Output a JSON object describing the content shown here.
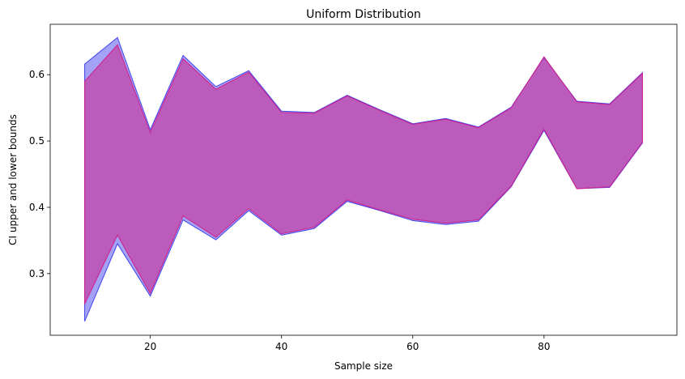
{
  "chart_data": {
    "type": "area",
    "title": "Uniform Distribution",
    "xlabel": "Sample size",
    "ylabel": "CI upper and lower bounds",
    "xlim": [
      4.75,
      100.25
    ],
    "ylim": [
      0.207,
      0.676
    ],
    "xticks": [
      20,
      40,
      60,
      80
    ],
    "yticks": [
      0.3,
      0.4,
      0.5,
      0.6
    ],
    "grid": false,
    "x": [
      10,
      15,
      20,
      25,
      30,
      35,
      40,
      45,
      50,
      55,
      60,
      65,
      70,
      75,
      80,
      85,
      90,
      95
    ],
    "series": [
      {
        "color": "#4545f0",
        "fill_opacity": 0.5,
        "lower": [
          0.228,
          0.345,
          0.266,
          0.381,
          0.351,
          0.395,
          0.358,
          0.368,
          0.409,
          0.395,
          0.38,
          0.374,
          0.379,
          0.431,
          0.516,
          0.428,
          0.43,
          0.497
        ],
        "upper": [
          0.616,
          0.656,
          0.517,
          0.629,
          0.582,
          0.606,
          0.545,
          0.543,
          0.569,
          0.547,
          0.526,
          0.534,
          0.521,
          0.551,
          0.626,
          0.56,
          0.556,
          0.603
        ]
      },
      {
        "color": "#d0208a",
        "fill_opacity": 0.55,
        "lower": [
          0.254,
          0.358,
          0.27,
          0.387,
          0.355,
          0.398,
          0.36,
          0.37,
          0.411,
          0.396,
          0.382,
          0.376,
          0.381,
          0.432,
          0.518,
          0.428,
          0.431,
          0.498
        ],
        "upper": [
          0.59,
          0.645,
          0.513,
          0.624,
          0.578,
          0.604,
          0.543,
          0.542,
          0.568,
          0.546,
          0.525,
          0.533,
          0.52,
          0.55,
          0.627,
          0.559,
          0.555,
          0.602
        ]
      }
    ]
  }
}
